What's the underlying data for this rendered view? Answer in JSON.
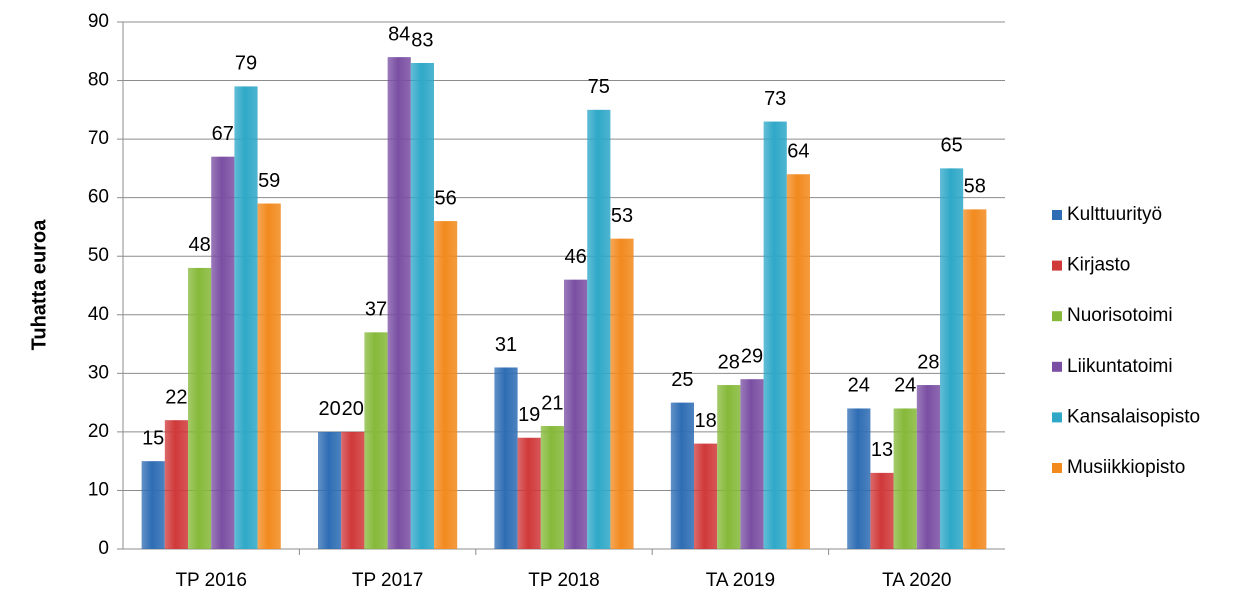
{
  "chart_data": {
    "type": "bar",
    "y_label": "Tuhatta euroa",
    "categories": [
      "TP 2016",
      "TP 2017",
      "TP 2018",
      "TA 2019",
      "TA 2020"
    ],
    "series": [
      {
        "name": "Kulttuurityö",
        "color": "#2e6db4",
        "values": [
          15,
          20,
          31,
          25,
          24
        ]
      },
      {
        "name": "Kirjasto",
        "color": "#d0393a",
        "values": [
          22,
          20,
          19,
          18,
          13
        ]
      },
      {
        "name": "Nuorisotoimi",
        "color": "#86b93a",
        "values": [
          48,
          37,
          21,
          28,
          24
        ]
      },
      {
        "name": "Liikuntatoimi",
        "color": "#7a4fa3",
        "values": [
          67,
          84,
          46,
          29,
          28
        ]
      },
      {
        "name": "Kansalaisopisto",
        "color": "#2fa8c8",
        "values": [
          79,
          83,
          75,
          73,
          65
        ]
      },
      {
        "name": "Musiikkiopisto",
        "color": "#f28a1e",
        "values": [
          59,
          56,
          53,
          64,
          58
        ]
      }
    ],
    "ylim": [
      0,
      90
    ],
    "yticks": [
      0,
      10,
      20,
      30,
      40,
      50,
      60,
      70,
      80,
      90
    ],
    "grid": true,
    "legend": "right"
  }
}
